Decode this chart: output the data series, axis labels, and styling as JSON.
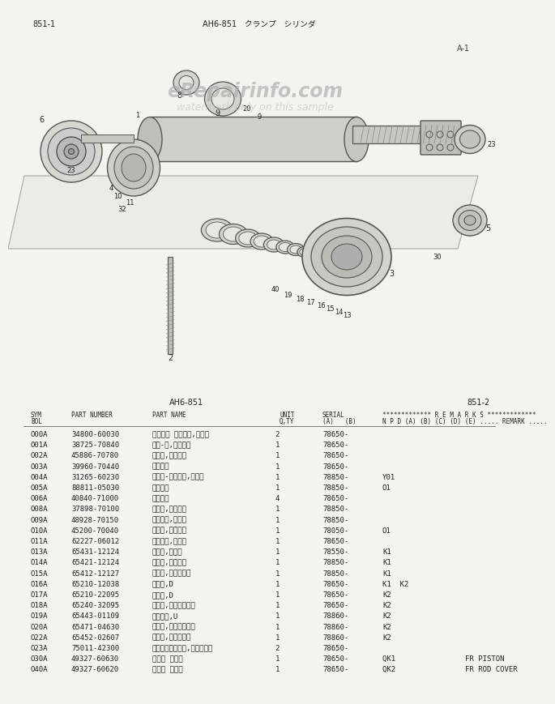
{
  "page_header_left": "851-1",
  "page_header_center": "AH6-851　クランプ　シリンダ",
  "page_header_right2": "851-2",
  "table_header_center": "AH6-851",
  "bg_color": "#f5f3ee",
  "rows": [
    [
      "O00A",
      "34800-60030",
      "シリンダ アッセン,オイル",
      "2",
      "78650-",
      ""
    ],
    [
      "O01A",
      "38725-70840",
      "チュ-ブ,シリンダ",
      "1",
      "78650-",
      ""
    ],
    [
      "O02A",
      "45886-70780",
      "ロッド,ピストン",
      "1",
      "78650-",
      ""
    ],
    [
      "O03A",
      "39960-70440",
      "ピストン",
      "1",
      "78650-",
      ""
    ],
    [
      "O04A",
      "31265-60230",
      "バルブ-アッセン,ロッド",
      "1",
      "78850-",
      "Y01"
    ],
    [
      "O05A",
      "88811-05030",
      "フレンジ",
      "1",
      "78850-",
      "O1"
    ],
    [
      "O06A",
      "40840-71000",
      "フレンジ",
      "4",
      "78650-",
      ""
    ],
    [
      "O08A",
      "37898-70100",
      "ナット,ピストン",
      "1",
      "78850-",
      ""
    ],
    [
      "O09A",
      "48928-70150",
      "ワッシャ,ロック",
      "1",
      "78850-",
      ""
    ],
    [
      "O10A",
      "45200-70040",
      "リング,ストップ",
      "1",
      "78050-",
      "O1"
    ],
    [
      "O11A",
      "62227-06012",
      "ストップ,ボルト",
      "1",
      "78650-",
      ""
    ],
    [
      "O13A",
      "65431-12124",
      "リング,ウェア",
      "1",
      "78550-",
      "K1"
    ],
    [
      "O14A",
      "65421-12124",
      "リング,スクエア",
      "1",
      "78850-",
      "K1"
    ],
    [
      "O15A",
      "65412-12127",
      "リング,スリビング",
      "1",
      "78850-",
      "K1"
    ],
    [
      "O16A",
      "65210-12038",
      "リング,D",
      "1",
      "78650-",
      "K1  K2"
    ],
    [
      "O17A",
      "65210-22095",
      "リング,D",
      "1",
      "78650-",
      "K2"
    ],
    [
      "O18A",
      "65240-32095",
      "リング,バックアップ",
      "1",
      "78650-",
      "K2"
    ],
    [
      "O19A",
      "65443-01109",
      "ハッシン,U",
      "1",
      "78860-",
      "K2"
    ],
    [
      "O20A",
      "65471-04630",
      "リング,バックアップ",
      "1",
      "78860-",
      "K2"
    ],
    [
      "O22A",
      "65452-02607",
      "リング,スクレーパ",
      "1",
      "78860-",
      "K2"
    ],
    [
      "O23A",
      "75011-42300",
      "ストラップリング,ストリップ",
      "2",
      "78650-",
      ""
    ],
    [
      "O30A",
      "49327-60630",
      "シール キット",
      "1",
      "78650-",
      "QK1                FR PISTON"
    ],
    [
      "O40A",
      "49327-60620",
      "シール キット",
      "1",
      "78650-",
      "QK2                FR ROD COVER"
    ]
  ],
  "watermark": "eRepairinfo.com",
  "watermark2": "watermark only on this sample",
  "diagram_label": "A-1",
  "font_size_table": 6.5
}
